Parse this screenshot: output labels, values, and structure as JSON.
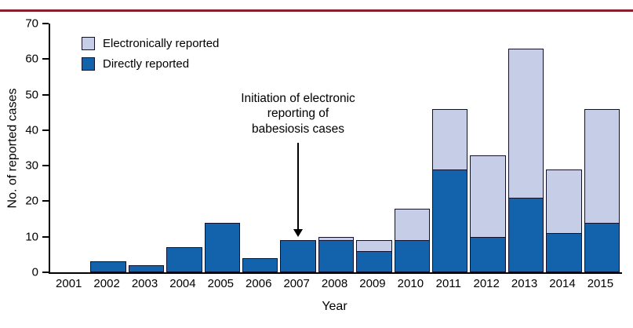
{
  "chart_data": {
    "type": "bar",
    "stacked": true,
    "title": "",
    "xlabel": "Year",
    "ylabel": "No. of reported cases",
    "ylim": [
      0,
      70
    ],
    "yticks": [
      0,
      10,
      20,
      30,
      40,
      50,
      60,
      70
    ],
    "categories": [
      "2001",
      "2002",
      "2003",
      "2004",
      "2005",
      "2006",
      "2007",
      "2008",
      "2009",
      "2010",
      "2011",
      "2012",
      "2013",
      "2014",
      "2015"
    ],
    "series": [
      {
        "name": "Directly reported",
        "color": "#1263ab",
        "values": [
          0,
          3,
          2,
          7,
          14,
          4,
          9,
          9,
          6,
          9,
          29,
          10,
          21,
          11,
          14
        ]
      },
      {
        "name": "Electronically reported",
        "color": "#c6cde6",
        "values": [
          0,
          0,
          0,
          0,
          0,
          0,
          0,
          1,
          3,
          9,
          17,
          23,
          42,
          18,
          32
        ]
      }
    ],
    "legend": [
      {
        "label": "Electronically reported",
        "color": "#c6cde6"
      },
      {
        "label": "Directly reported",
        "color": "#1263ab"
      }
    ],
    "legend_position": "top-left",
    "grid": false,
    "annotation": {
      "lines": [
        "Initiation of electronic",
        "reporting of",
        "babesiosis cases"
      ],
      "target_year": "2007"
    }
  },
  "colors": {
    "top_rule": "#8a1f2e",
    "bar_border": "#10102c",
    "axis": "#000000"
  }
}
